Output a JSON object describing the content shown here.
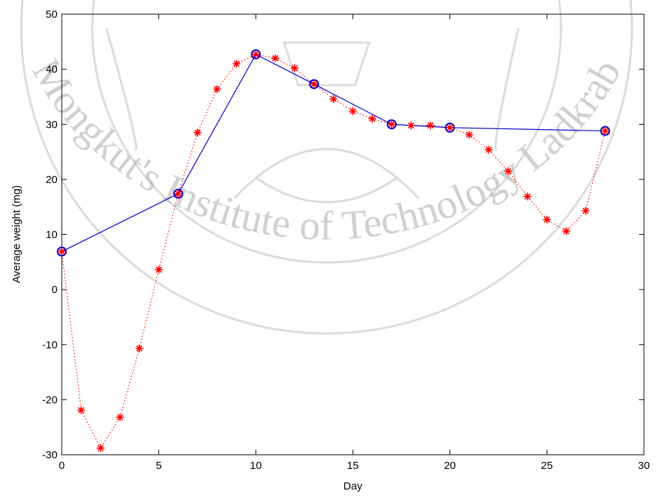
{
  "chart_data": {
    "type": "line",
    "watermark": "Mongkut's Institute of Technology Ladkrab",
    "xlabel": "Day",
    "ylabel": "Average weight (mg)",
    "xlim": [
      0,
      30
    ],
    "xticks": [
      0,
      5,
      10,
      15,
      20,
      25,
      30
    ],
    "ylim": [
      -30,
      50
    ],
    "yticks": [
      -30,
      -20,
      -10,
      0,
      10,
      20,
      30,
      40,
      50
    ],
    "grid": false,
    "series": [
      {
        "color": "#ff0000",
        "line_style": "dotted",
        "marker": "asterisk",
        "x": [
          0,
          1,
          2,
          3,
          4,
          5,
          6,
          7,
          8,
          9,
          10,
          11,
          12,
          13,
          14,
          15,
          16,
          17,
          18,
          19,
          20,
          21,
          22,
          23,
          24,
          25,
          26,
          27,
          28
        ],
        "values": [
          6.9,
          -21.9,
          -28.8,
          -23.2,
          -10.7,
          3.6,
          17.4,
          28.5,
          36.4,
          41.0,
          42.7,
          42.0,
          40.2,
          37.3,
          34.6,
          32.4,
          31.0,
          30.0,
          29.8,
          29.8,
          29.4,
          28.1,
          25.4,
          21.5,
          16.9,
          12.7,
          10.6,
          14.3,
          28.8
        ]
      },
      {
        "color": "#0000cc",
        "line_style": "solid",
        "marker": "circle",
        "x": [
          0,
          6,
          10,
          13,
          17,
          20,
          28
        ],
        "values": [
          6.9,
          17.4,
          42.7,
          37.3,
          30.0,
          29.4,
          28.8
        ]
      }
    ]
  }
}
